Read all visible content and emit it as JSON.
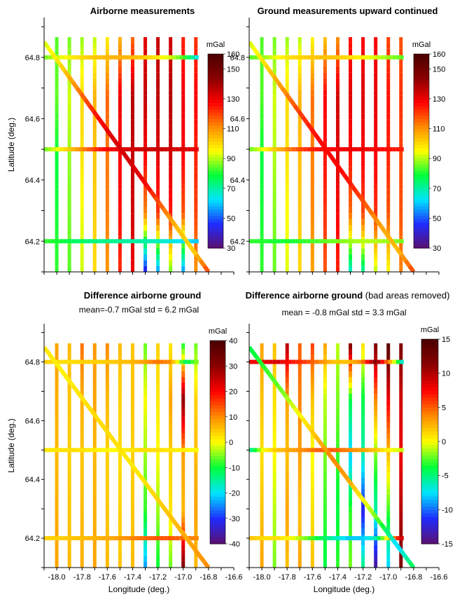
{
  "figure": {
    "colormap_stops": [
      "#5c0f6e",
      "#1f2cff",
      "#00e5ff",
      "#00ff3b",
      "#ffff00",
      "#ff8c00",
      "#ff0000",
      "#8b0000",
      "#4a0000"
    ]
  },
  "chart_data": [
    {
      "type": "heatmap",
      "title": "Airborne measurements",
      "title_suffix": "",
      "subtitle": "",
      "xlabel": "",
      "ylabel": "Latitude (deg.)",
      "xlim": [
        -18.1,
        -16.6
      ],
      "ylim": [
        64.1,
        64.93
      ],
      "xticks": [],
      "yticks": [
        "64.2",
        "64.4",
        "64.6",
        "64.8"
      ],
      "colorbar": {
        "unit": "mGal",
        "range": [
          30,
          160
        ],
        "ticks": [
          "30",
          "50",
          "70",
          "90",
          "110",
          "130",
          "150",
          "160"
        ]
      },
      "north_south_lines": [
        {
          "lon": -18.0,
          "values": [
            82,
            80,
            79,
            85,
            84
          ]
        },
        {
          "lon": -17.9,
          "values": [
            84,
            86,
            88,
            92,
            86
          ]
        },
        {
          "lon": -17.8,
          "values": [
            92,
            94,
            99,
            100,
            88
          ]
        },
        {
          "lon": -17.7,
          "values": [
            100,
            102,
            103,
            106,
            90
          ]
        },
        {
          "lon": -17.6,
          "values": [
            110,
            113,
            114,
            116,
            97
          ]
        },
        {
          "lon": -17.5,
          "values": [
            123,
            126,
            128,
            130,
            105
          ]
        },
        {
          "lon": -17.4,
          "values": [
            130,
            134,
            136,
            138,
            115
          ]
        },
        {
          "lon": -17.3,
          "values": [
            42,
            112,
            128,
            136,
            131
          ]
        },
        {
          "lon": -17.2,
          "values": [
            55,
            122,
            132,
            137,
            135
          ]
        },
        {
          "lon": -17.1,
          "values": [
            85,
            125,
            134,
            138,
            134
          ]
        },
        {
          "lon": -17.0,
          "values": [
            55,
            118,
            128,
            130,
            124
          ]
        },
        {
          "lon": -16.9,
          "values": [
            110,
            120,
            124,
            128,
            122
          ]
        }
      ],
      "east_west_lines": [
        {
          "lat": 64.8,
          "values": [
            86,
            92,
            98,
            102,
            104,
            106,
            105,
            103,
            98,
            92,
            82,
            62
          ]
        },
        {
          "lat": 64.5,
          "values": [
            85,
            95,
            105,
            115,
            125,
            130,
            133,
            135,
            135,
            134,
            133,
            130
          ]
        },
        {
          "lat": 64.2,
          "values": [
            82,
            80,
            76,
            74,
            72,
            72,
            70,
            70,
            68,
            65,
            62,
            60
          ]
        }
      ],
      "diagonal_line": {
        "from": [
          -18.1,
          64.85
        ],
        "to": [
          -16.8,
          64.1
        ],
        "values": [
          92,
          100,
          112,
          124,
          132,
          134,
          130,
          118,
          105,
          100,
          120
        ]
      }
    },
    {
      "type": "heatmap",
      "title": "Ground measurements upward continued",
      "title_suffix": "",
      "subtitle": "",
      "xlabel": "",
      "ylabel": "",
      "xlim": [
        -18.1,
        -16.6
      ],
      "ylim": [
        64.1,
        64.93
      ],
      "xticks": [],
      "yticks": [
        "64.2",
        "64.4",
        "64.6",
        "64.8"
      ],
      "colorbar": {
        "unit": "mGal",
        "range": [
          30,
          160
        ],
        "ticks": [
          "30",
          "50",
          "70",
          "90",
          "110",
          "130",
          "150",
          "160"
        ]
      },
      "north_south_lines": [
        {
          "lon": -18.0,
          "values": [
            82,
            80,
            79,
            84,
            84
          ]
        },
        {
          "lon": -17.9,
          "values": [
            85,
            87,
            90,
            92,
            86
          ]
        },
        {
          "lon": -17.8,
          "values": [
            93,
            95,
            99,
            100,
            88
          ]
        },
        {
          "lon": -17.7,
          "values": [
            100,
            103,
            104,
            106,
            90
          ]
        },
        {
          "lon": -17.6,
          "values": [
            108,
            112,
            113,
            115,
            96
          ]
        },
        {
          "lon": -17.5,
          "values": [
            118,
            122,
            126,
            128,
            103
          ]
        },
        {
          "lon": -17.4,
          "values": [
            124,
            128,
            132,
            134,
            110
          ]
        },
        {
          "lon": -17.3,
          "values": [
            66,
            115,
            126,
            132,
            125
          ]
        },
        {
          "lon": -17.2,
          "values": [
            70,
            120,
            128,
            132,
            128
          ]
        },
        {
          "lon": -17.1,
          "values": [
            90,
            122,
            128,
            131,
            128
          ]
        },
        {
          "lon": -17.0,
          "values": [
            95,
            118,
            124,
            126,
            120
          ]
        },
        {
          "lon": -16.9,
          "values": [
            112,
            118,
            120,
            122,
            118
          ]
        }
      ],
      "east_west_lines": [
        {
          "lat": 64.8,
          "values": [
            84,
            88,
            95,
            100,
            102,
            104,
            103,
            100,
            96,
            92,
            88,
            84
          ]
        },
        {
          "lat": 64.5,
          "values": [
            85,
            95,
            105,
            115,
            122,
            126,
            128,
            130,
            130,
            128,
            126,
            124
          ]
        },
        {
          "lat": 64.2,
          "values": [
            82,
            81,
            80,
            80,
            82,
            84,
            86,
            88,
            90,
            90,
            88,
            86
          ]
        }
      ],
      "diagonal_line": {
        "from": [
          -18.1,
          64.85
        ],
        "to": [
          -16.8,
          64.1
        ],
        "values": [
          92,
          100,
          110,
          120,
          126,
          128,
          126,
          118,
          108,
          104,
          120
        ]
      }
    },
    {
      "type": "heatmap",
      "title": "Difference airborne ground",
      "title_suffix": "",
      "subtitle": "mean=-0.7 mGal  std = 6.2 mGal",
      "xlabel": "Longitude (deg.)",
      "ylabel": "Latitude (deg.)",
      "xlim": [
        -18.1,
        -16.6
      ],
      "ylim": [
        64.1,
        64.93
      ],
      "xticks": [
        "-18.0",
        "-17.8",
        "-17.6",
        "-17.4",
        "-17.2",
        "-17.0",
        "-16.8",
        "-16.6"
      ],
      "yticks": [
        "64.2",
        "64.4",
        "64.6",
        "64.8"
      ],
      "colorbar": {
        "unit": "mGal",
        "range": [
          -40,
          40
        ],
        "ticks": [
          "-40",
          "-30",
          "-20",
          "-10",
          "0",
          "10",
          "20",
          "30",
          "40"
        ]
      },
      "north_south_lines": [
        {
          "lon": -18.0,
          "values": [
            8,
            7,
            6,
            7,
            8
          ]
        },
        {
          "lon": -17.9,
          "values": [
            6,
            5,
            4,
            5,
            6
          ]
        },
        {
          "lon": -17.8,
          "values": [
            7,
            6,
            5,
            7,
            12
          ]
        },
        {
          "lon": -17.7,
          "values": [
            8,
            7,
            6,
            8,
            9
          ]
        },
        {
          "lon": -17.6,
          "values": [
            6,
            5,
            4,
            6,
            10
          ]
        },
        {
          "lon": -17.5,
          "values": [
            5,
            4,
            3,
            4,
            6
          ]
        },
        {
          "lon": -17.4,
          "values": [
            6,
            5,
            4,
            5,
            5
          ]
        },
        {
          "lon": -17.3,
          "values": [
            -24,
            -8,
            -4,
            0,
            -6
          ]
        },
        {
          "lon": -17.2,
          "values": [
            -10,
            -4,
            0,
            2,
            4
          ]
        },
        {
          "lon": -17.1,
          "values": [
            -6,
            2,
            4,
            8,
            2
          ]
        },
        {
          "lon": -17.0,
          "values": [
            32,
            6,
            8,
            30,
            -10
          ]
        },
        {
          "lon": -16.9,
          "values": [
            6,
            8,
            6,
            4,
            -6
          ]
        }
      ],
      "east_west_lines": [
        {
          "lat": 64.8,
          "values": [
            4,
            3,
            3,
            4,
            4,
            5,
            6,
            8,
            12,
            10,
            -12,
            -4
          ]
        },
        {
          "lat": 64.5,
          "values": [
            2,
            2,
            3,
            2,
            1,
            0,
            2,
            3,
            3,
            2,
            1,
            0
          ]
        },
        {
          "lat": 64.2,
          "values": [
            4,
            4,
            5,
            6,
            7,
            8,
            10,
            12,
            14,
            14,
            12,
            10
          ]
        }
      ],
      "diagonal_line": {
        "from": [
          -18.1,
          64.85
        ],
        "to": [
          -16.8,
          64.1
        ],
        "values": [
          2,
          1,
          2,
          3,
          3,
          2,
          2,
          4,
          6,
          8,
          10
        ]
      }
    },
    {
      "type": "heatmap",
      "title": "Difference airborne ground",
      "title_suffix": " (bad areas removed)",
      "subtitle": "mean = -0.8 mGal  std = 3.3 mGal",
      "xlabel": "Longitude (deg.)",
      "ylabel": "",
      "xlim": [
        -18.1,
        -16.6
      ],
      "ylim": [
        64.1,
        64.93
      ],
      "xticks": [
        "-18.0",
        "-17.8",
        "-17.6",
        "-17.4",
        "-17.2",
        "-17.0",
        "-16.8",
        "-16.6"
      ],
      "yticks": [],
      "colorbar": {
        "unit": "mGal",
        "range": [
          -15,
          15
        ],
        "ticks": [
          "-15",
          "-10",
          "-5",
          "0",
          "5",
          "10",
          "15"
        ]
      },
      "north_south_lines": [
        {
          "lon": -18.0,
          "values": [
            3,
            2,
            1,
            2,
            3
          ]
        },
        {
          "lon": -17.9,
          "values": [
            -2,
            -1,
            0,
            1,
            2
          ]
        },
        {
          "lon": -17.8,
          "values": [
            2,
            3,
            2,
            3,
            10
          ]
        },
        {
          "lon": -17.7,
          "values": [
            3,
            2,
            3,
            4,
            5
          ]
        },
        {
          "lon": -17.6,
          "values": [
            2,
            1,
            0,
            2,
            6
          ]
        },
        {
          "lon": -17.5,
          "values": [
            -4,
            -3,
            -2,
            -1,
            3
          ]
        },
        {
          "lon": -17.4,
          "values": [
            -3,
            -4,
            -3,
            -2,
            -1
          ]
        },
        {
          "lon": -17.3,
          "values": [
            -2,
            -3,
            -8,
            -4,
            12
          ]
        },
        {
          "lon": -17.2,
          "values": [
            -5,
            -12,
            -6,
            -4,
            1
          ]
        },
        {
          "lon": -17.1,
          "values": [
            -14,
            -6,
            -2,
            4,
            12
          ]
        },
        {
          "lon": -17.0,
          "values": [
            -8,
            -3,
            2,
            8,
            14
          ]
        },
        {
          "lon": -16.9,
          "values": [
            12,
            10,
            8,
            9,
            12
          ]
        }
      ],
      "east_west_lines": [
        {
          "lat": 64.8,
          "values": [
            8,
            8,
            9,
            7,
            6,
            4,
            2,
            2,
            4,
            12,
            3,
            -8
          ]
        },
        {
          "lat": 64.5,
          "values": [
            -6,
            0,
            2,
            3,
            4,
            5,
            5,
            4,
            3,
            2,
            0,
            -1
          ]
        },
        {
          "lat": 64.2,
          "values": [
            2,
            1,
            1,
            0,
            -2,
            -4,
            -6,
            -8,
            -8,
            -6,
            2,
            10
          ]
        }
      ],
      "diagonal_line": {
        "from": [
          -18.1,
          64.85
        ],
        "to": [
          -16.8,
          64.1
        ],
        "values": [
          -4,
          -3,
          -2,
          0,
          2,
          4,
          3,
          0,
          -3,
          -8,
          -4
        ]
      }
    }
  ]
}
